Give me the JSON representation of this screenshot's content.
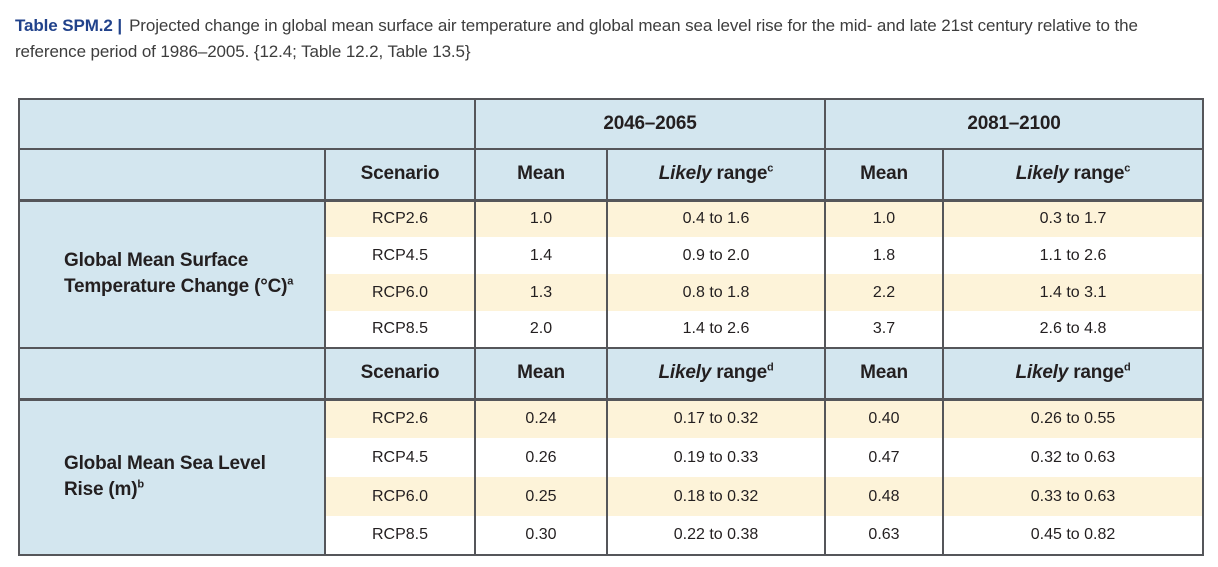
{
  "caption": {
    "label": "Table SPM.2 |",
    "text": "Projected change in global mean surface air temperature and global mean sea level rise for the mid- and late 21st century relative to the reference period of 1986–2005. {12.4; Table 12.2, Table 13.5}"
  },
  "colors": {
    "header_blue": "#d3e6ef",
    "row_cream": "#fdf3d9",
    "border_gray": "#55565a",
    "caption_navy": "#21428b"
  },
  "table": {
    "period_headers": [
      "2046–2065",
      "2081–2100"
    ],
    "column_headers": {
      "scenario": "Scenario",
      "mean": "Mean",
      "likely_word": "Likely",
      "range_word": "range"
    },
    "sections": [
      {
        "label": "Global Mean Surface Temperature Change (°C)",
        "label_sup": "a",
        "likely_sup": "c",
        "rows": [
          {
            "scenario": "RCP2.6",
            "mean_mid": "1.0",
            "range_mid": "0.4 to 1.6",
            "mean_late": "1.0",
            "range_late": "0.3 to 1.7"
          },
          {
            "scenario": "RCP4.5",
            "mean_mid": "1.4",
            "range_mid": "0.9 to 2.0",
            "mean_late": "1.8",
            "range_late": "1.1 to 2.6"
          },
          {
            "scenario": "RCP6.0",
            "mean_mid": "1.3",
            "range_mid": "0.8 to 1.8",
            "mean_late": "2.2",
            "range_late": "1.4 to 3.1"
          },
          {
            "scenario": "RCP8.5",
            "mean_mid": "2.0",
            "range_mid": "1.4 to 2.6",
            "mean_late": "3.7",
            "range_late": "2.6 to 4.8"
          }
        ]
      },
      {
        "label": "Global Mean Sea Level Rise (m)",
        "label_sup": "b",
        "likely_sup": "d",
        "rows": [
          {
            "scenario": "RCP2.6",
            "mean_mid": "0.24",
            "range_mid": "0.17 to 0.32",
            "mean_late": "0.40",
            "range_late": "0.26 to 0.55"
          },
          {
            "scenario": "RCP4.5",
            "mean_mid": "0.26",
            "range_mid": "0.19 to 0.33",
            "mean_late": "0.47",
            "range_late": "0.32 to 0.63"
          },
          {
            "scenario": "RCP6.0",
            "mean_mid": "0.25",
            "range_mid": "0.18 to 0.32",
            "mean_late": "0.48",
            "range_late": "0.33 to 0.63"
          },
          {
            "scenario": "RCP8.5",
            "mean_mid": "0.30",
            "range_mid": "0.22 to 0.38",
            "mean_late": "0.63",
            "range_late": "0.45 to 0.82"
          }
        ]
      }
    ]
  }
}
